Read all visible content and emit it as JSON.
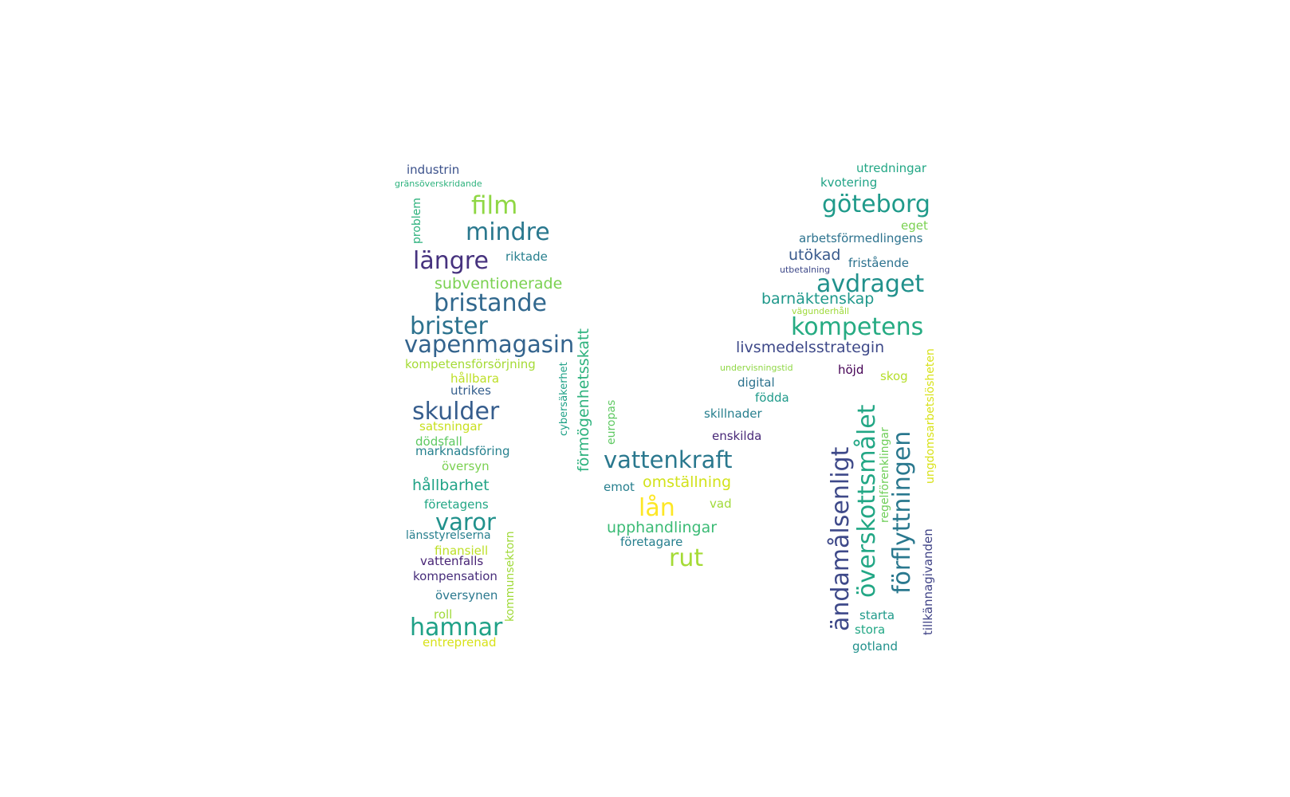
{
  "words": [
    {
      "text": "industrin",
      "color": "#3b518b"
    },
    {
      "text": "gränsöverskridande",
      "color": "#2db27d"
    },
    {
      "text": "problem",
      "color": "#2db27d"
    },
    {
      "text": "film",
      "color": "#8fd744"
    },
    {
      "text": "mindre",
      "color": "#2a788e"
    },
    {
      "text": "längre",
      "color": "#46327e"
    },
    {
      "text": "riktade",
      "color": "#277f8e"
    },
    {
      "text": "subventionerade",
      "color": "#7ad151"
    },
    {
      "text": "bristande",
      "color": "#31688e"
    },
    {
      "text": "brister",
      "color": "#2c728e"
    },
    {
      "text": "vapenmagasin",
      "color": "#33638d"
    },
    {
      "text": "kompetensförsörjning",
      "color": "#a5db36"
    },
    {
      "text": "hållbara",
      "color": "#bddf26"
    },
    {
      "text": "utrikes",
      "color": "#355f8d"
    },
    {
      "text": "skulder",
      "color": "#365d8d"
    },
    {
      "text": "satsningar",
      "color": "#c8e020"
    },
    {
      "text": "dödsfall",
      "color": "#5ec962"
    },
    {
      "text": "marknadsföring",
      "color": "#26818e"
    },
    {
      "text": "översyn",
      "color": "#7ad151"
    },
    {
      "text": "hållbarhet",
      "color": "#20a386"
    },
    {
      "text": "företagens",
      "color": "#22a785"
    },
    {
      "text": "varor",
      "color": "#21918c"
    },
    {
      "text": "länsstyrelserna",
      "color": "#277f8e"
    },
    {
      "text": "finansiell",
      "color": "#bddf26"
    },
    {
      "text": "vattenfalls",
      "color": "#482475"
    },
    {
      "text": "kompensation",
      "color": "#472d7b"
    },
    {
      "text": "översynen",
      "color": "#2a788e"
    },
    {
      "text": "roll",
      "color": "#a0da39"
    },
    {
      "text": "hamnar",
      "color": "#1fa187"
    },
    {
      "text": "entreprenad",
      "color": "#d8e219"
    },
    {
      "text": "kommunsektorn",
      "color": "#a0da39"
    },
    {
      "text": "cybersäkerhet",
      "color": "#1fa187"
    },
    {
      "text": "förmögenhetsskatt",
      "color": "#2db27d"
    },
    {
      "text": "europas",
      "color": "#5ec962"
    },
    {
      "text": "vattenkraft",
      "color": "#2a788e"
    },
    {
      "text": "emot",
      "color": "#277f8e"
    },
    {
      "text": "omställning",
      "color": "#d2e21b"
    },
    {
      "text": "lån",
      "color": "#fde725"
    },
    {
      "text": "vad",
      "color": "#a0da39"
    },
    {
      "text": "upphandlingar",
      "color": "#3bbb75"
    },
    {
      "text": "företagare",
      "color": "#277f8e"
    },
    {
      "text": "rut",
      "color": "#a5db36"
    },
    {
      "text": "utredningar",
      "color": "#22a785"
    },
    {
      "text": "kvotering",
      "color": "#20a386"
    },
    {
      "text": "göteborg",
      "color": "#1f9a8a"
    },
    {
      "text": "eget",
      "color": "#7ad151"
    },
    {
      "text": "arbetsförmedlingens",
      "color": "#2c728e"
    },
    {
      "text": "utökad",
      "color": "#38598c"
    },
    {
      "text": "fristående",
      "color": "#2c728e"
    },
    {
      "text": "utbetalning",
      "color": "#3e4989"
    },
    {
      "text": "avdraget",
      "color": "#21918c"
    },
    {
      "text": "barnäktenskap",
      "color": "#1f988b"
    },
    {
      "text": "vägunderhåll",
      "color": "#9fda3a"
    },
    {
      "text": "kompetens",
      "color": "#25ab82"
    },
    {
      "text": "livsmedelsstrategin",
      "color": "#3e4989"
    },
    {
      "text": "undervisningstid",
      "color": "#8fd744"
    },
    {
      "text": "höjd",
      "color": "#440154"
    },
    {
      "text": "skog",
      "color": "#b5de2b"
    },
    {
      "text": "digital",
      "color": "#2c728e"
    },
    {
      "text": "födda",
      "color": "#1f9a8a"
    },
    {
      "text": "skillnader",
      "color": "#277f8e"
    },
    {
      "text": "enskilda",
      "color": "#482878"
    },
    {
      "text": "ändamålsenligt",
      "color": "#3e4989"
    },
    {
      "text": "överskottsmålet",
      "color": "#22a785"
    },
    {
      "text": "förflyttningen",
      "color": "#2a788e"
    },
    {
      "text": "regelförenklingar",
      "color": "#6ece58"
    },
    {
      "text": "ungdomsarbetslösheten",
      "color": "#d8e219"
    },
    {
      "text": "tillkännagivanden",
      "color": "#414487"
    },
    {
      "text": "starta",
      "color": "#1f9a8a"
    },
    {
      "text": "stora",
      "color": "#22a785"
    },
    {
      "text": "gotland",
      "color": "#21918c"
    }
  ]
}
